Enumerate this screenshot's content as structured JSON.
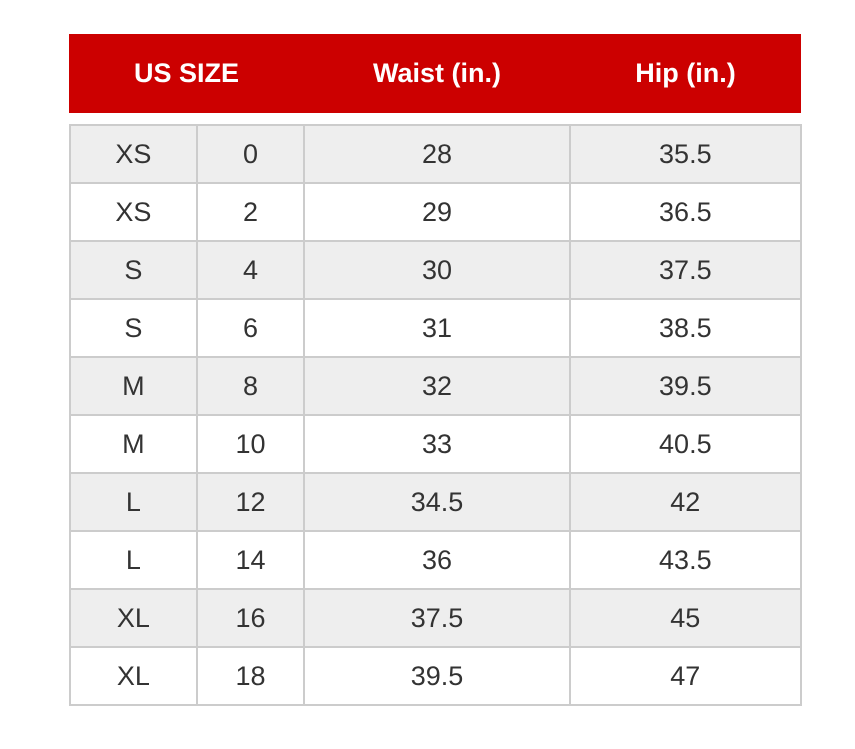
{
  "header": {
    "size": "US SIZE",
    "waist": "Waist (in.)",
    "hip": "Hip (in.)"
  },
  "colors": {
    "header_bg": "#cc0000"
  },
  "rows": [
    [
      "XS",
      "0",
      "28",
      "35.5"
    ],
    [
      "XS",
      "2",
      "29",
      "36.5"
    ],
    [
      "S",
      "4",
      "30",
      "37.5"
    ],
    [
      "S",
      "6",
      "31",
      "38.5"
    ],
    [
      "M",
      "8",
      "32",
      "39.5"
    ],
    [
      "M",
      "10",
      "33",
      "40.5"
    ],
    [
      "L",
      "12",
      "34.5",
      "42"
    ],
    [
      "L",
      "14",
      "36",
      "43.5"
    ],
    [
      "XL",
      "16",
      "37.5",
      "45"
    ],
    [
      "XL",
      "18",
      "39.5",
      "47"
    ]
  ]
}
